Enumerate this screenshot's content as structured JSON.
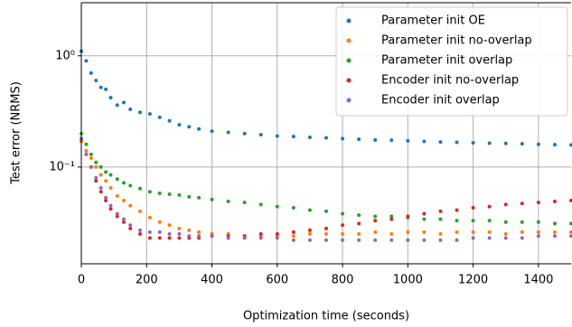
{
  "chart_data": {
    "type": "scatter",
    "xlabel": "Optimization time (seconds)",
    "ylabel": "Test error (NRMS)",
    "log_y": true,
    "grid": true,
    "legend": "upper right",
    "xlim": [
      0,
      1500
    ],
    "ylim": [
      0.0135,
      3.0
    ],
    "xticks": [
      0,
      200,
      400,
      600,
      800,
      1000,
      1200,
      1400
    ],
    "yticks": [
      {
        "value": 1,
        "label": "10⁰"
      },
      {
        "value": 0.1,
        "label": "10⁻¹"
      }
    ],
    "x": [
      0,
      15,
      30,
      45,
      60,
      75,
      90,
      110,
      130,
      150,
      180,
      210,
      240,
      270,
      300,
      330,
      360,
      400,
      450,
      500,
      550,
      600,
      650,
      700,
      750,
      800,
      850,
      900,
      950,
      1000,
      1050,
      1100,
      1150,
      1200,
      1250,
      1300,
      1350,
      1400,
      1450,
      1500
    ],
    "series": [
      {
        "name": "Parameter init OE",
        "color": "#1f77b4",
        "values": [
          1.1,
          0.9,
          0.7,
          0.6,
          0.52,
          0.5,
          0.42,
          0.36,
          0.38,
          0.33,
          0.31,
          0.3,
          0.28,
          0.26,
          0.24,
          0.23,
          0.22,
          0.21,
          0.205,
          0.2,
          0.195,
          0.19,
          0.188,
          0.185,
          0.183,
          0.18,
          0.178,
          0.175,
          0.174,
          0.172,
          0.17,
          0.168,
          0.167,
          0.165,
          0.164,
          0.163,
          0.162,
          0.16,
          0.159,
          0.158
        ]
      },
      {
        "name": "Parameter init no-overlap",
        "color": "#ff7f0e",
        "values": [
          0.17,
          0.14,
          0.12,
          0.1,
          0.085,
          0.075,
          0.065,
          0.055,
          0.05,
          0.045,
          0.04,
          0.035,
          0.032,
          0.03,
          0.028,
          0.027,
          0.026,
          0.025,
          0.025,
          0.024,
          0.024,
          0.024,
          0.024,
          0.025,
          0.025,
          0.025,
          0.025,
          0.026,
          0.025,
          0.026,
          0.026,
          0.025,
          0.026,
          0.026,
          0.026,
          0.025,
          0.026,
          0.026,
          0.026,
          0.026
        ]
      },
      {
        "name": "Parameter init overlap",
        "color": "#2ca02c",
        "values": [
          0.2,
          0.16,
          0.13,
          0.11,
          0.1,
          0.09,
          0.085,
          0.078,
          0.072,
          0.068,
          0.064,
          0.06,
          0.058,
          0.057,
          0.056,
          0.054,
          0.053,
          0.051,
          0.049,
          0.048,
          0.046,
          0.044,
          0.043,
          0.041,
          0.04,
          0.038,
          0.037,
          0.036,
          0.036,
          0.035,
          0.034,
          0.034,
          0.033,
          0.033,
          0.033,
          0.032,
          0.032,
          0.032,
          0.031,
          0.031
        ]
      },
      {
        "name": "Encoder init no-overlap",
        "color": "#d62728",
        "values": [
          0.18,
          0.13,
          0.1,
          0.075,
          0.06,
          0.05,
          0.042,
          0.036,
          0.032,
          0.028,
          0.025,
          0.023,
          0.023,
          0.023,
          0.023,
          0.023,
          0.023,
          0.024,
          0.024,
          0.024,
          0.025,
          0.025,
          0.026,
          0.027,
          0.028,
          0.03,
          0.031,
          0.033,
          0.034,
          0.036,
          0.038,
          0.04,
          0.041,
          0.043,
          0.044,
          0.046,
          0.047,
          0.048,
          0.049,
          0.05
        ]
      },
      {
        "name": "Encoder init overlap",
        "color": "#9467bd",
        "values": [
          0.18,
          0.13,
          0.1,
          0.08,
          0.065,
          0.053,
          0.045,
          0.038,
          0.034,
          0.03,
          0.027,
          0.026,
          0.026,
          0.025,
          0.025,
          0.024,
          0.024,
          0.024,
          0.023,
          0.023,
          0.023,
          0.023,
          0.022,
          0.022,
          0.022,
          0.022,
          0.022,
          0.022,
          0.022,
          0.022,
          0.022,
          0.022,
          0.022,
          0.023,
          0.023,
          0.023,
          0.023,
          0.024,
          0.024,
          0.024
        ]
      }
    ]
  }
}
